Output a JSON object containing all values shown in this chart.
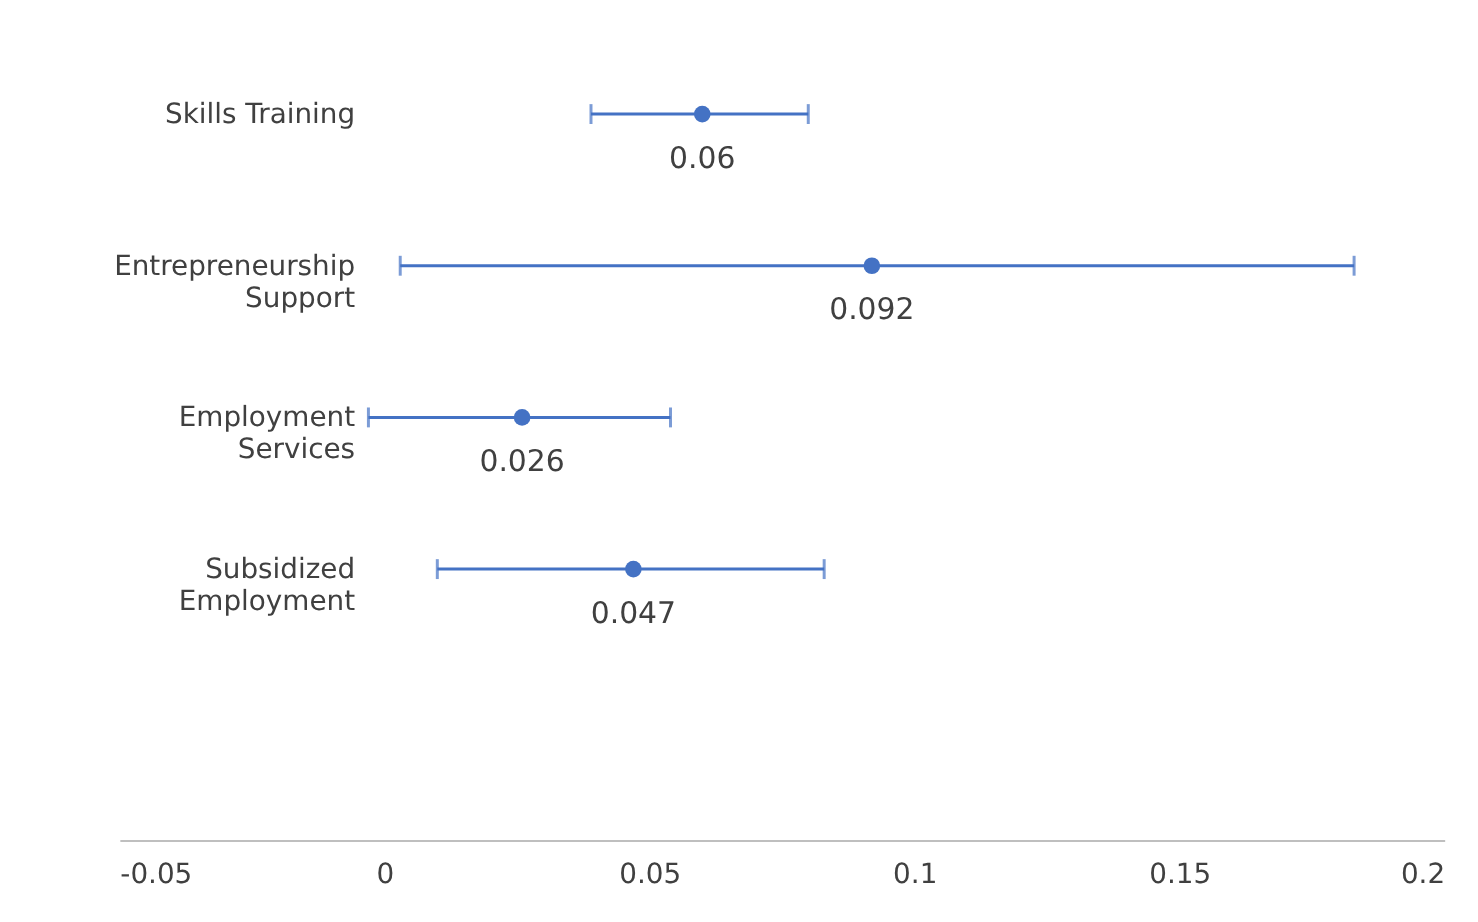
{
  "chart_data": {
    "type": "scatter",
    "orientation": "horizontal",
    "categories": [
      "Skills Training",
      "Entrepreneurship Support",
      "Employment Services",
      "Subsidized Employment"
    ],
    "values": [
      0.06,
      0.092,
      0.026,
      0.047
    ],
    "errors": [
      [
        0.039,
        0.08
      ],
      [
        0.003,
        0.183
      ],
      [
        -0.003,
        0.054
      ],
      [
        0.01,
        0.083
      ]
    ],
    "color": "#4472c4",
    "data_labels": true,
    "marker": "circle",
    "grid": false,
    "xlim": [
      -0.05,
      0.2
    ],
    "xticks": [
      -0.05,
      0,
      0.05,
      0.1,
      0.15,
      0.2
    ]
  }
}
